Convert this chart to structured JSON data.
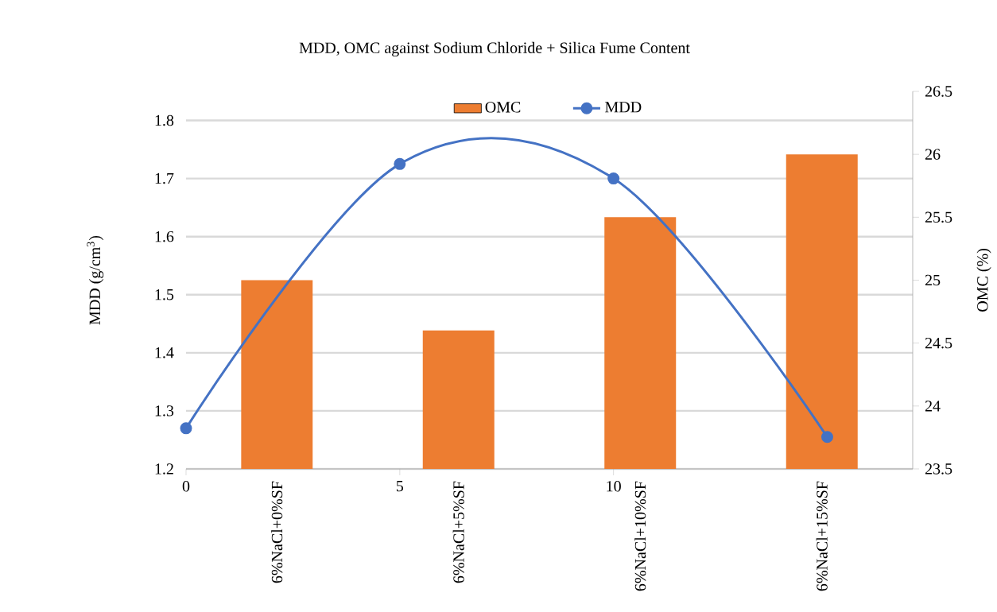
{
  "chart_data": {
    "type": "bar",
    "title": "MDD, OMC against Sodium Chloride + Silica Fume Content",
    "ylabel": "MDD (g/cm$^{3}$)",
    "y2label": "OMC (%)",
    "categories": [
      "6%NaCl+0%SF",
      "6%NaCl+5%SF",
      "6%NaCl+10%SF",
      "6%NaCl+15%SF"
    ],
    "series": [
      {
        "name": "OMC",
        "axis": "y2",
        "color": "#ed7d31",
        "values": [
          25.0,
          24.6,
          25.5,
          26.0
        ]
      },
      {
        "name": "MDD",
        "type": "line",
        "axis": "x2",
        "x": [
          0,
          5,
          10,
          15
        ],
        "color": "#4472c4",
        "values": [
          1.27,
          1.725,
          1.7,
          1.255
        ]
      }
    ],
    "marker": "circle",
    "x2lim": [
      0,
      17
    ],
    "x2ticks": [
      0,
      5,
      10
    ],
    "ylim": [
      1.2,
      1.85
    ],
    "yticks": [
      1.2,
      1.3,
      1.4,
      1.5,
      1.6,
      1.7,
      1.8
    ],
    "y2lim": [
      23.5,
      26.5
    ],
    "y2ticks": [
      23.5,
      24,
      24.5,
      25,
      25.5,
      26,
      26.5
    ],
    "grid": "y",
    "legend": "top"
  }
}
